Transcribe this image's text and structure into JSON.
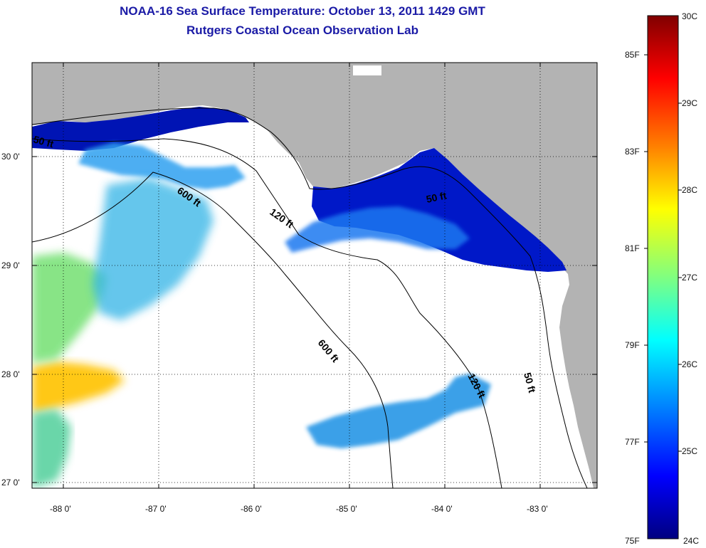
{
  "title": "NOAA-16 Sea Surface Temperature:  October 13, 2011 1429 GMT",
  "subtitle": "Rutgers Coastal Ocean Observation Lab",
  "map": {
    "lon_ticks": [
      "-88 0'",
      "-87 0'",
      "-86 0'",
      "-85 0'",
      "-84 0'",
      "-83 0'"
    ],
    "lat_ticks": [
      "30 0'",
      "29 0'",
      "28 0'",
      "27 0'"
    ],
    "contour_labels": [
      "50 ft",
      "600 ft",
      "120 ft",
      "50 ft",
      "600 ft",
      "120 ft",
      "50 ft"
    ],
    "land_color": "#b3b3b3",
    "cloud_color": "#ffffff"
  },
  "colorbar": {
    "celsius": [
      "30C",
      "29C",
      "28C",
      "27C",
      "26C",
      "25C",
      "24C"
    ],
    "fahrenheit": [
      "85F",
      "83F",
      "81F",
      "79F",
      "77F",
      "75F"
    ],
    "colors": [
      "#800000",
      "#ff0000",
      "#ff8000",
      "#ffff00",
      "#80ff80",
      "#00ffff",
      "#0080ff",
      "#0000ff",
      "#000080"
    ]
  }
}
